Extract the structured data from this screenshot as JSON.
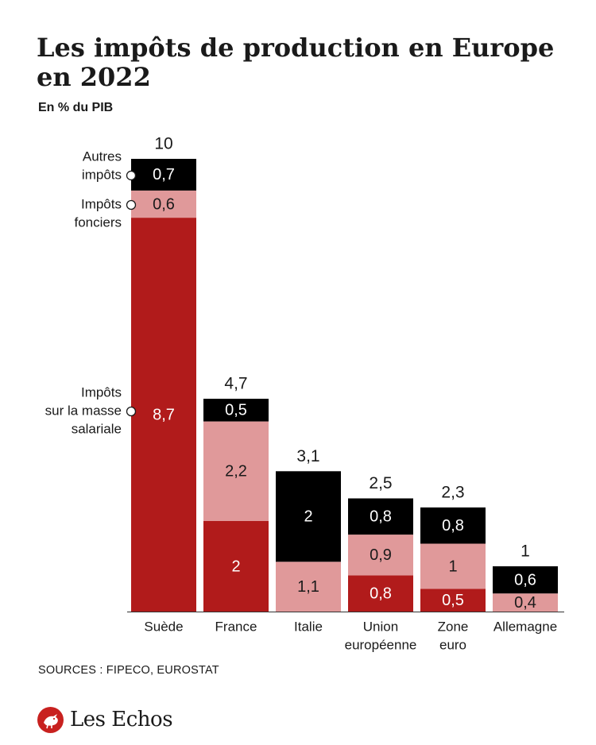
{
  "header": {
    "title": "Les impôts de production en Europe en 2022",
    "subtitle": "En % du PIB"
  },
  "footer": {
    "sources": "SOURCES : FIPECO, EUROSTAT",
    "logo_text": "Les Echos"
  },
  "colors": {
    "masse_salariale": "#b11b1b",
    "fonciers": "#e0999a",
    "autres": "#000000",
    "axis": "#333333"
  },
  "chart_data": {
    "type": "bar",
    "stacked": true,
    "title": "Les impôts de production en Europe en 2022",
    "ylabel": "En % du PIB",
    "categories": [
      [
        "Suède"
      ],
      [
        "France"
      ],
      [
        "Italie"
      ],
      [
        "Union",
        "européenne"
      ],
      [
        "Zone",
        "euro"
      ],
      [
        "Allemagne"
      ]
    ],
    "series": [
      {
        "name": "Impôts sur la masse salariale",
        "legend_lines": [
          "Impôts",
          "sur la masse",
          "salariale"
        ],
        "values": [
          8.7,
          2,
          0,
          0.8,
          0.5,
          0
        ]
      },
      {
        "name": "Impôts fonciers",
        "legend_lines": [
          "Impôts",
          "fonciers"
        ],
        "values": [
          0.6,
          2.2,
          1.1,
          0.9,
          1,
          0.4
        ]
      },
      {
        "name": "Autres impôts",
        "legend_lines": [
          "Autres",
          "impôts"
        ],
        "values": [
          0.7,
          0.5,
          2,
          0.8,
          0.8,
          0.6
        ]
      }
    ],
    "segment_labels": [
      [
        "8,7",
        "0,6",
        "0,7"
      ],
      [
        "2",
        "2,2",
        "0,5"
      ],
      [
        "",
        "1,1",
        "2"
      ],
      [
        "0,8",
        "0,9",
        "0,8"
      ],
      [
        "0,5",
        "1",
        "0,8"
      ],
      [
        "",
        "0,4",
        "0,6"
      ]
    ],
    "totals": [
      10,
      4.7,
      3.1,
      2.5,
      2.3,
      1
    ],
    "total_labels": [
      "10",
      "4,7",
      "3,1",
      "2,5",
      "2,3",
      "1"
    ],
    "ylim": [
      0,
      10
    ],
    "grid": false,
    "legend": "left, inline with first bar"
  }
}
